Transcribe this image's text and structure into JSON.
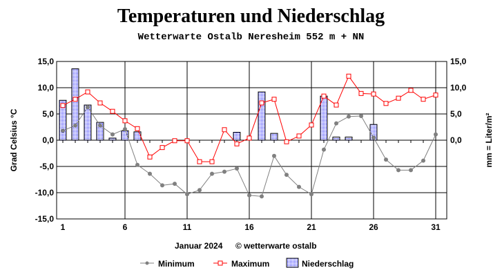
{
  "chart_data": {
    "type": "bar+line",
    "title": "Temperaturen und Niederschlag",
    "subtitle": "Wetterwarte Ostalb Neresheim 552 m + NN",
    "xlabel": "Januar 2024",
    "copyright": "© wetterwarte ostalb",
    "ylabel_left": "Grad Celsius °C",
    "ylabel_right": "mm = Liter/m²",
    "ylim": [
      -15,
      15
    ],
    "y2lim": [
      0,
      15
    ],
    "yticks_left": [
      "15,0",
      "10,0",
      "5,0",
      "0,0",
      "-5,0",
      "-10,0",
      "-15,0"
    ],
    "yticks_right": [
      "15,0",
      "10,0",
      "5,0",
      "0,0"
    ],
    "xticks": [
      "1",
      "6",
      "11",
      "16",
      "21",
      "26",
      "31"
    ],
    "x": [
      1,
      2,
      3,
      4,
      5,
      6,
      7,
      8,
      9,
      10,
      11,
      12,
      13,
      14,
      15,
      16,
      17,
      18,
      19,
      20,
      21,
      22,
      23,
      24,
      25,
      26,
      27,
      28,
      29,
      30,
      31
    ],
    "grid": true,
    "legend_position": "bottom",
    "series": [
      {
        "name": "Minimum",
        "type": "line",
        "color": "#808080",
        "values": [
          1.8,
          2.8,
          6.3,
          2.8,
          1.1,
          2.1,
          -4.7,
          -6.4,
          -8.6,
          -8.3,
          -10.3,
          -9.5,
          -6.4,
          -6.0,
          -5.4,
          -10.5,
          -10.7,
          -3.0,
          -6.6,
          -8.9,
          -10.3,
          -1.8,
          3.2,
          4.5,
          4.6,
          0.5,
          -3.7,
          -5.7,
          -5.7,
          -3.9,
          1.1
        ]
      },
      {
        "name": "Maximum",
        "type": "line",
        "color": "#ff0000",
        "values": [
          6.6,
          7.8,
          9.2,
          7.1,
          5.5,
          3.7,
          2.2,
          -3.2,
          -1.4,
          -0.1,
          -0.1,
          -4.1,
          -4.1,
          2.0,
          -0.7,
          0.4,
          7.1,
          7.8,
          -0.3,
          0.8,
          2.9,
          8.4,
          6.7,
          12.2,
          8.9,
          8.8,
          7.0,
          8.0,
          9.5,
          7.8,
          8.6
        ]
      },
      {
        "name": "Niederschlag",
        "type": "bar",
        "color": "#0000ff",
        "axis": "right",
        "values": [
          7.6,
          13.6,
          6.7,
          3.4,
          0.4,
          1.8,
          1.6,
          0,
          0,
          0,
          0,
          0,
          0,
          0,
          1.5,
          0,
          9.2,
          1.3,
          0,
          0,
          0,
          8.4,
          0.6,
          0.6,
          0,
          3.0,
          0,
          0,
          0,
          0,
          0
        ]
      }
    ]
  }
}
